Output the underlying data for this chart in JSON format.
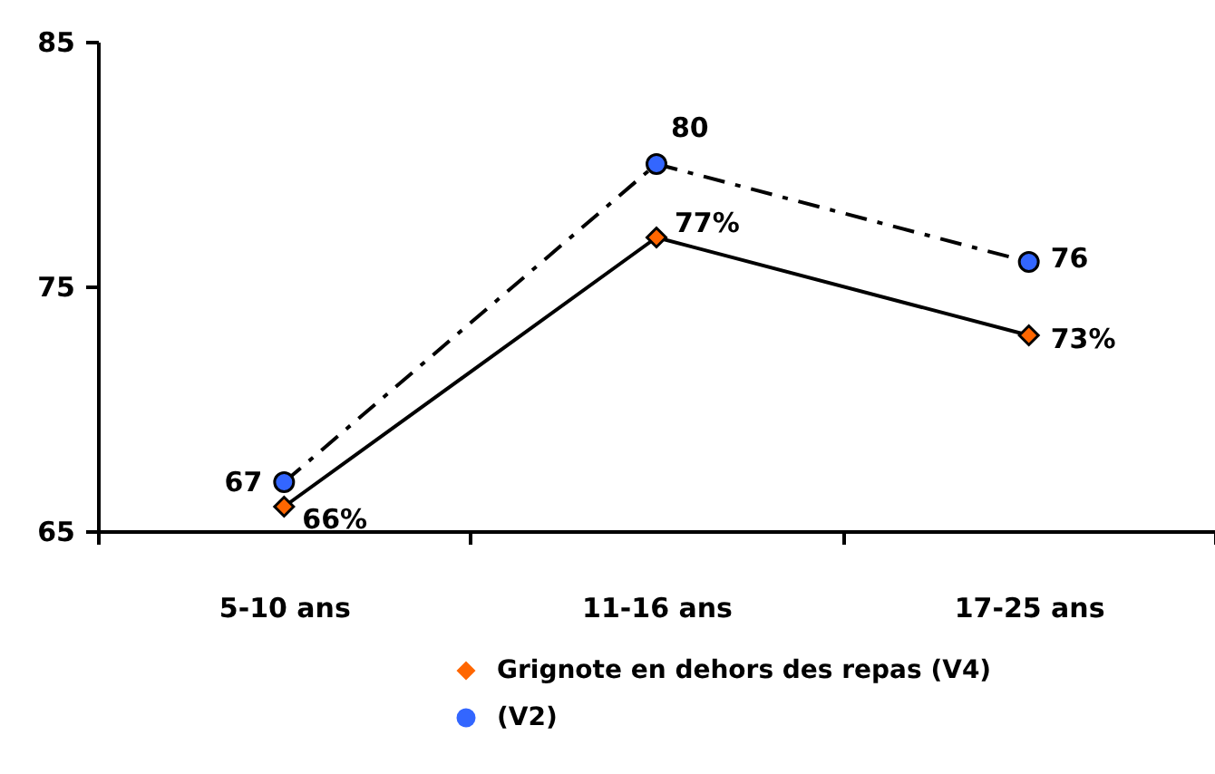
{
  "chart_data": {
    "type": "line",
    "categories": [
      "5-10 ans",
      "11-16 ans",
      "17-25 ans"
    ],
    "series": [
      {
        "name": "Grignote en dehors des repas (V4)",
        "color": "#ff6600",
        "values": [
          66,
          77,
          73
        ],
        "value_labels": [
          "66%",
          "77%",
          "73%"
        ],
        "marker": "diamond",
        "line_style": "solid"
      },
      {
        "name": "(V2)",
        "color": "#3366ff",
        "values": [
          67,
          80,
          76
        ],
        "value_labels": [
          "67",
          "80",
          "76"
        ],
        "marker": "circle",
        "line_style": "dashed"
      }
    ],
    "ylim": [
      65,
      85
    ],
    "yticks": [
      65,
      75,
      85
    ],
    "grid": false,
    "legend": "bottom"
  }
}
